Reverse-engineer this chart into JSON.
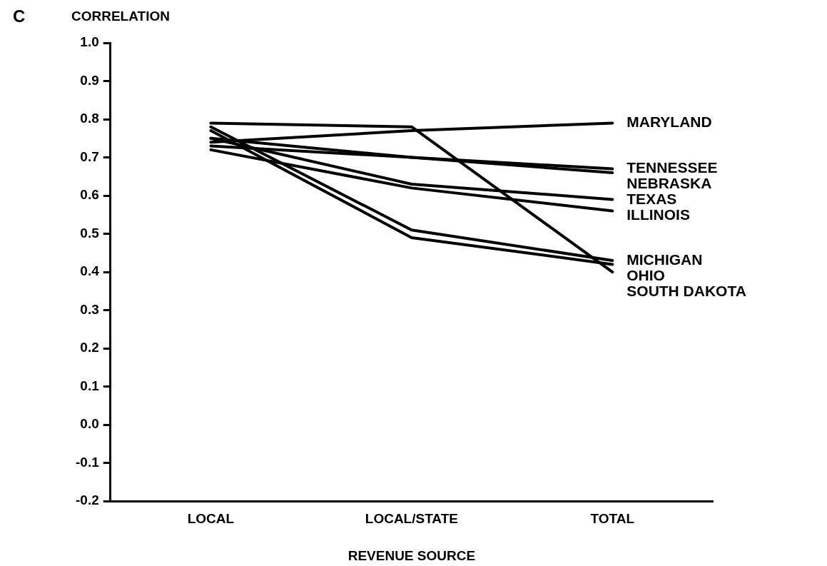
{
  "chart_data": {
    "type": "line",
    "title": "C",
    "ylabel": "CORRELATION",
    "xlabel": "REVENUE SOURCE",
    "categories": [
      "LOCAL",
      "LOCAL/STATE",
      "TOTAL"
    ],
    "series": [
      {
        "name": "MARYLAND",
        "color": "#000000",
        "values": [
          0.74,
          0.77,
          0.79
        ]
      },
      {
        "name": "TENNESSEE",
        "color": "#000000",
        "values": [
          0.75,
          0.7,
          0.67
        ]
      },
      {
        "name": "NEBRASKA",
        "color": "#000000",
        "values": [
          0.73,
          0.7,
          0.66
        ]
      },
      {
        "name": "TEXAS",
        "color": "#000000",
        "values": [
          0.75,
          0.63,
          0.59
        ]
      },
      {
        "name": "ILLINOIS",
        "color": "#000000",
        "values": [
          0.72,
          0.62,
          0.56
        ]
      },
      {
        "name": "MICHIGAN",
        "color": "#000000",
        "values": [
          0.78,
          0.51,
          0.43
        ]
      },
      {
        "name": "OHIO",
        "color": "#000000",
        "values": [
          0.77,
          0.49,
          0.42
        ]
      },
      {
        "name": "SOUTH DAKOTA",
        "color": "#000000",
        "values": [
          0.79,
          0.78,
          0.4
        ]
      }
    ],
    "ylim": [
      -0.2,
      1.0
    ],
    "yticks": [
      {
        "value": -0.2,
        "label": "-0.2"
      },
      {
        "value": -0.1,
        "label": "-0.1"
      },
      {
        "value": 0,
        "label": "0.0"
      },
      {
        "value": 0.1,
        "label": "0.1"
      },
      {
        "value": 0.2,
        "label": "0.2"
      },
      {
        "value": 0.3,
        "label": "0.3"
      },
      {
        "value": 0.4,
        "label": "0.4"
      },
      {
        "value": 0.5,
        "label": "0.5"
      },
      {
        "value": 0.6,
        "label": "0.6"
      },
      {
        "value": 0.7,
        "label": "0.7"
      },
      {
        "value": 0.8,
        "label": "0.8"
      },
      {
        "value": 0.9,
        "label": "0.9"
      },
      {
        "value": 1,
        "label": "1.0"
      }
    ],
    "grid": false,
    "legend": false,
    "marker": "none",
    "line_style": "solid"
  }
}
